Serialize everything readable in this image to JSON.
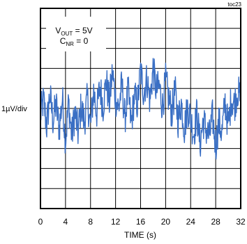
{
  "chart_data": {
    "type": "line",
    "corner_label": "toc23",
    "annotation": {
      "line1_main": "V",
      "line1_sub": "OUT",
      "line1_rest": " = 5V",
      "line2_main": "C",
      "line2_sub": "NR",
      "line2_rest": " = 0"
    },
    "xlabel": "TIME (s)",
    "ylabel": "1µV/div",
    "xlim": [
      0,
      32
    ],
    "ylim": [
      -5,
      5
    ],
    "x_ticks": [
      "0",
      "4",
      "8",
      "12",
      "16",
      "20",
      "24",
      "28",
      "32"
    ],
    "grid": true,
    "y_divisions": 10,
    "series": [
      {
        "color": "#3a6fc4",
        "x": [
          0,
          0.5,
          1,
          1.5,
          2,
          2.5,
          3,
          3.5,
          4,
          4.5,
          5,
          5.5,
          6,
          6.5,
          7,
          7.5,
          8,
          8.5,
          9,
          9.5,
          10,
          10.5,
          11,
          11.5,
          12,
          12.5,
          13,
          13.5,
          14,
          14.5,
          15,
          15.5,
          16,
          16.5,
          17,
          17.5,
          18,
          18.5,
          19,
          19.5,
          20,
          20.5,
          21,
          21.5,
          22,
          22.5,
          23,
          23.5,
          24,
          24.5,
          25,
          25.5,
          26,
          26.5,
          27,
          27.5,
          28,
          28.5,
          29,
          29.5,
          30,
          30.5,
          31,
          31.5,
          32
        ],
        "y": [
          -0.3,
          0.4,
          -0.9,
          0.7,
          -0.6,
          0.2,
          -1.0,
          0.5,
          -1.6,
          0.3,
          -1.4,
          -0.2,
          -1.2,
          0.1,
          -0.7,
          0.5,
          -0.9,
          0.9,
          -0.2,
          1.1,
          0.1,
          1.4,
          0.3,
          1.8,
          0.5,
          0.0,
          1.2,
          -0.5,
          0.9,
          -0.8,
          0.6,
          0.2,
          1.9,
          0.8,
          1.5,
          0.4,
          2.0,
          0.9,
          1.1,
          0.1,
          1.4,
          0.5,
          -0.2,
          0.9,
          -0.6,
          0.3,
          -1.0,
          0.1,
          -0.5,
          -1.3,
          -0.2,
          -1.8,
          -0.6,
          -1.1,
          -1.4,
          -0.4,
          -1.9,
          -0.7,
          -1.2,
          0.3,
          -0.9,
          0.5,
          0.2,
          0.9,
          0.4
        ]
      }
    ]
  }
}
